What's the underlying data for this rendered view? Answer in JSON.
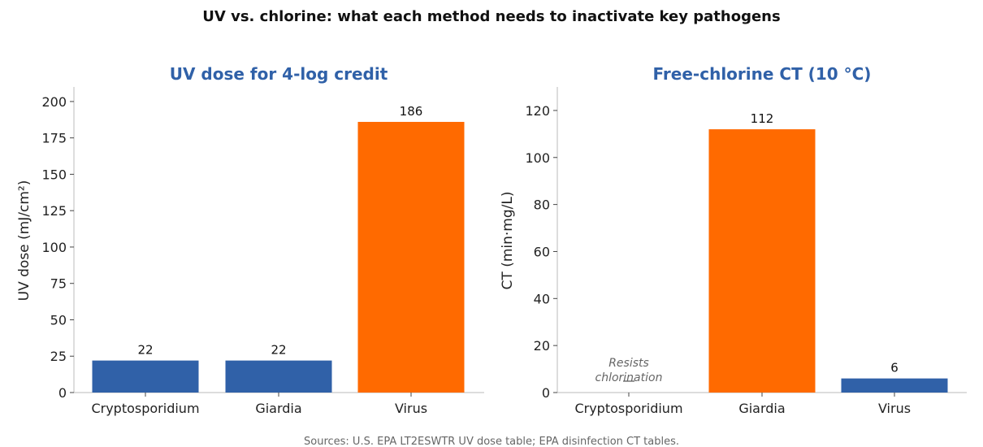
{
  "suptitle": "UV vs. chlorine: what each method needs to inactivate key pathogens",
  "source": "Sources: U.S. EPA LT2ESWTR UV dose table; EPA disinfection CT tables.",
  "colors": {
    "blue": "#3061a8",
    "orange": "#ff6a00",
    "title": "#3061a8",
    "axis": "#bbbbbb"
  },
  "chart_data": [
    {
      "type": "bar",
      "title": "UV dose for 4-log credit",
      "xlabel": "",
      "ylabel": "UV dose (mJ/cm²)",
      "categories": [
        "Cryptosporidium",
        "Giardia",
        "Virus"
      ],
      "values": [
        22,
        22,
        186
      ],
      "labels": [
        "22",
        "22",
        "186"
      ],
      "bar_colors": [
        "blue",
        "blue",
        "orange"
      ],
      "ylim": [
        0,
        210
      ],
      "yticks": [
        0,
        25,
        50,
        75,
        100,
        125,
        150,
        175,
        200
      ],
      "grid": false
    },
    {
      "type": "bar",
      "title": "Free-chlorine CT (10 °C)",
      "xlabel": "",
      "ylabel": "CT (min·mg/L)",
      "categories": [
        "Cryptosporidium",
        "Giardia",
        "Virus"
      ],
      "values": [
        null,
        112,
        6
      ],
      "labels": [
        "",
        "112",
        "6"
      ],
      "bar_colors": [
        "blue",
        "orange",
        "blue"
      ],
      "annotation": {
        "category": "Cryptosporidium",
        "lines": [
          "Resists",
          "chlorination"
        ]
      },
      "ylim": [
        0,
        130
      ],
      "yticks": [
        0,
        20,
        40,
        60,
        80,
        100,
        120
      ],
      "grid": false
    }
  ]
}
